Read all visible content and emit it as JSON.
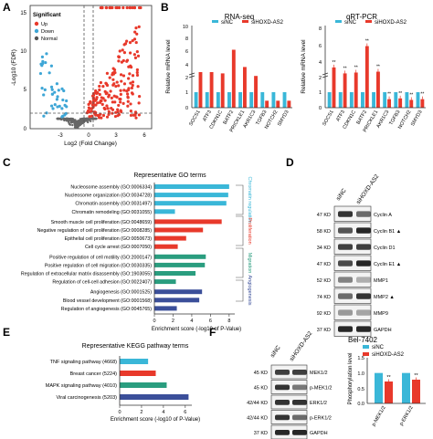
{
  "panels": {
    "A": {
      "letter": "A",
      "xlabel": "Log2 (Fold Change)",
      "ylabel": "-Log10 (FDR)",
      "legend_title": "Significant",
      "legend": [
        {
          "label": "Up",
          "color": "#e8392b"
        },
        {
          "label": "Down",
          "color": "#3ea6d6"
        },
        {
          "label": "Normal",
          "color": "#555555"
        }
      ],
      "xticks": [
        "-3",
        "0",
        "3",
        "6"
      ],
      "yticks": [
        "0",
        "5",
        "10",
        "15"
      ]
    },
    "B": {
      "letter": "B",
      "left": {
        "title": "RNA-seq",
        "ylabel": "Relative mRNA level",
        "yticks": [
          "0",
          "1",
          "2",
          "4",
          "6",
          "8",
          "10"
        ]
      },
      "right": {
        "title": "qRT-PCR",
        "ylabel": "Relative mRNA level",
        "yticks": [
          "0",
          "1",
          "2",
          "4",
          "6",
          "8"
        ]
      },
      "legend": [
        {
          "label": "siNC",
          "color": "#3ab7d8"
        },
        {
          "label": "siHOXD-AS2",
          "color": "#e8392b"
        }
      ],
      "genes": [
        "SOCS1",
        "ATF3",
        "CDKN1C",
        "BATF2",
        "PRICKLE1",
        "AKR1C3",
        "TGFB3",
        "NOTCH2",
        "SMYD3"
      ],
      "sig_label": "**"
    },
    "C": {
      "letter": "C",
      "title": "Representative GO terms",
      "xlabel": "Enrichment score (-log10 of P-Value)",
      "xticks": [
        "0",
        "2",
        "4",
        "6",
        "8"
      ],
      "categories": [
        {
          "label": "Chromatin regulation",
          "color": "#3ab7d8"
        },
        {
          "label": "Proliferation",
          "color": "#e8392b"
        },
        {
          "label": "Migration",
          "color": "#2a9d7f"
        },
        {
          "label": "Angiogenesis",
          "color": "#3b4f9a"
        }
      ],
      "terms": [
        {
          "label": "Nucleosome assembly (GO:0006334)",
          "color": "#3ab7d8"
        },
        {
          "label": "Nucleosome organization (GO:0034728)",
          "color": "#3ab7d8"
        },
        {
          "label": "Chromatin assembly (GO:0031497)",
          "color": "#3ab7d8"
        },
        {
          "label": "Chromatin remodeling (GO:0031055)",
          "color": "#3ab7d8"
        },
        {
          "label": "Smooth muscle cell proliferation (GO:0048659)",
          "color": "#e8392b"
        },
        {
          "label": "Negative regulation of cell proliferation (GO:0008285)",
          "color": "#e8392b"
        },
        {
          "label": "Epithelial cell proliferation (GO:0050673)",
          "color": "#e8392b"
        },
        {
          "label": "Cell cycle arrest (GO:0007050)",
          "color": "#e8392b"
        },
        {
          "label": "Positive regulation of cell motility (GO:2000147)",
          "color": "#2a9d7f"
        },
        {
          "label": "Positive regulation of cell migration (GO:0030335)",
          "color": "#2a9d7f"
        },
        {
          "label": "Regulation of extracellular matrix disassembly (GO:1903055)",
          "color": "#2a9d7f"
        },
        {
          "label": "Regulation of cell-cell adhesion (GO:0022407)",
          "color": "#2a9d7f"
        },
        {
          "label": "Angiogenesis (GO:0001525)",
          "color": "#3b4f9a"
        },
        {
          "label": "Blood vessel development (GO:0001568)",
          "color": "#3b4f9a"
        },
        {
          "label": "Regulation of angiogenesis (GO:0045765)",
          "color": "#3b4f9a"
        }
      ]
    },
    "D": {
      "letter": "D",
      "lanes": [
        "siNC",
        "siHOXD-AS2"
      ],
      "caption": "Bel-7402",
      "rows": [
        {
          "kd": "47 KD",
          "protein": "Cyclin A",
          "mark": ""
        },
        {
          "kd": "58 KD",
          "protein": "Cyclin B1",
          "mark": "▲"
        },
        {
          "kd": "34 KD",
          "protein": "Cyclin D1",
          "mark": ""
        },
        {
          "kd": "47 KD",
          "protein": "Cyclin E1",
          "mark": "▲"
        },
        {
          "kd": "52 KD",
          "protein": "MMP1",
          "mark": ""
        },
        {
          "kd": "74 KD",
          "protein": "MMP2",
          "mark": "▲"
        },
        {
          "kd": "92 KD",
          "protein": "MMP9",
          "mark": ""
        },
        {
          "kd": "37 KD",
          "protein": "GAPDH",
          "mark": ""
        }
      ]
    },
    "E": {
      "letter": "E",
      "title": "Representative KEGG pathway terms",
      "xlabel": "Enrichment score (-log10 of P-Value)",
      "xticks": [
        "0",
        "2",
        "4",
        "6"
      ],
      "terms": [
        {
          "label": "TNF signaling pathway (4668)",
          "color": "#3ab7d8"
        },
        {
          "label": "Breast cancer (5224)",
          "color": "#e8392b"
        },
        {
          "label": "MAPK signaling pathway (4010)",
          "color": "#2a9d7f"
        },
        {
          "label": "Viral carcinogenesis (5203)",
          "color": "#3b4f9a"
        }
      ]
    },
    "F": {
      "letter": "F",
      "lanes": [
        "siNC",
        "siHOXD-AS2"
      ],
      "rows": [
        {
          "kd": "45 KD",
          "protein": "MEK1/2"
        },
        {
          "kd": "45 KD",
          "protein": "p-MEK1/2"
        },
        {
          "kd": "42/44 KD",
          "protein": "ERK1/2"
        },
        {
          "kd": "42/44 KD",
          "protein": "p-ERK1/2"
        },
        {
          "kd": "37 KD",
          "protein": "GAPDH"
        }
      ],
      "bar_ylabel": "Phosphorylation level",
      "bar_yticks": [
        "0.0",
        "0.5",
        "1.0",
        "1.5"
      ],
      "bar_categories": [
        "p-MEK1/2",
        "p-ERK1/2"
      ],
      "legend": [
        {
          "label": "siNC",
          "color": "#3ab7d8"
        },
        {
          "label": "siHOXD-AS2",
          "color": "#e8392b"
        }
      ],
      "sig_label": "**"
    }
  },
  "chart_data": [
    {
      "panel": "A",
      "type": "scatter",
      "xlabel": "Log2 (Fold Change)",
      "ylabel": "-Log10 (FDR)",
      "xlim": [
        -5,
        8
      ],
      "ylim": [
        0,
        16
      ],
      "thresholds": {
        "x": [
          -1,
          1
        ],
        "y": 1.3
      }
    },
    {
      "panel": "B-left",
      "type": "bar",
      "title": "RNA-seq",
      "ylabel": "Relative mRNA level",
      "categories": [
        "SOCS1",
        "ATF3",
        "CDKN1C",
        "BATF2",
        "PRICKLE1",
        "AKR1C3",
        "TGFB3",
        "NOTCH2",
        "SMYD3"
      ],
      "series": [
        {
          "name": "siNC",
          "values": [
            1,
            1,
            1,
            1,
            1,
            1,
            1,
            1,
            1
          ]
        },
        {
          "name": "siHOXD-AS2",
          "values": [
            3.0,
            3.0,
            2.8,
            6.5,
            3.8,
            2.4,
            0.45,
            0.45,
            0.45
          ]
        }
      ],
      "ylim": [
        0,
        10
      ]
    },
    {
      "panel": "B-right",
      "type": "bar",
      "title": "qRT-PCR",
      "ylabel": "Relative mRNA level",
      "categories": [
        "SOCS1",
        "ATF3",
        "CDKN1C",
        "BATF2",
        "PRICKLE1",
        "AKR1C3",
        "TGFB3",
        "NOTCH2",
        "SMYD3"
      ],
      "series": [
        {
          "name": "siNC",
          "values": [
            1,
            1,
            1,
            1,
            1,
            1,
            1,
            1,
            1
          ]
        },
        {
          "name": "siHOXD-AS2",
          "values": [
            3.3,
            2.6,
            2.7,
            5.8,
            2.8,
            0.55,
            0.6,
            0.5,
            0.55
          ]
        }
      ],
      "ylim": [
        0,
        8
      ]
    },
    {
      "panel": "C",
      "type": "bar",
      "title": "Representative GO terms",
      "xlabel": "Enrichment score (-log10 of P-Value)",
      "categories": [
        "Nucleosome assembly (GO:0006334)",
        "Nucleosome organization (GO:0034728)",
        "Chromatin assembly (GO:0031497)",
        "Chromatin remodeling (GO:0031055)",
        "Smooth muscle cell proliferation (GO:0048659)",
        "Negative regulation of cell proliferation (GO:0008285)",
        "Epithelial cell proliferation (GO:0050673)",
        "Cell cycle arrest (GO:0007050)",
        "Positive regulation of cell motility (GO:2000147)",
        "Positive regulation of cell migration (GO:0030335)",
        "Regulation of extracellular matrix disassembly (GO:1903055)",
        "Regulation of cell-cell adhesion (GO:0022407)",
        "Angiogenesis (GO:0001525)",
        "Blood vessel development (GO:0001568)",
        "Regulation of angiogenesis (GO:0045765)"
      ],
      "values": [
        8.0,
        7.9,
        7.7,
        2.2,
        7.2,
        5.2,
        3.4,
        2.5,
        5.5,
        5.4,
        4.4,
        2.3,
        5.1,
        4.8,
        2.4
      ],
      "xlim": [
        0,
        8.6
      ]
    },
    {
      "panel": "E",
      "type": "bar",
      "title": "Representative KEGG pathway terms",
      "xlabel": "Enrichment score (-log10 of P-Value)",
      "categories": [
        "TNF signaling pathway (4668)",
        "Breast cancer (5224)",
        "MAPK signaling pathway (4010)",
        "Viral carcinogenesis (5203)"
      ],
      "values": [
        2.6,
        3.3,
        4.3,
        6.3
      ],
      "xlim": [
        0,
        6.6
      ]
    },
    {
      "panel": "F",
      "type": "bar",
      "ylabel": "Phosphorylation level",
      "categories": [
        "p-MEK1/2",
        "p-ERK1/2"
      ],
      "series": [
        {
          "name": "siNC",
          "values": [
            1.0,
            1.0
          ]
        },
        {
          "name": "siHOXD-AS2",
          "values": [
            0.72,
            0.78
          ]
        }
      ],
      "ylim": [
        0,
        1.5
      ]
    }
  ]
}
